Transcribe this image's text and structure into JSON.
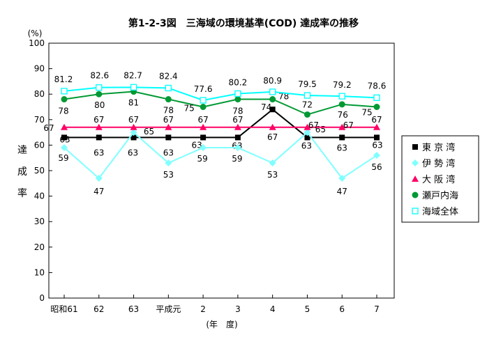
{
  "chart_data": {
    "type": "line",
    "title": "第1-2-3図　三海域の環境基準(COD) 達成率の推移",
    "y_unit": "(%)",
    "ylabel_chars": [
      "達",
      "成",
      "率"
    ],
    "xlabel": "(年　度)",
    "categories": [
      "昭和61",
      "62",
      "63",
      "平成元",
      "2",
      "3",
      "4",
      "5",
      "6",
      "7"
    ],
    "ylim": [
      0,
      100
    ],
    "yticks": [
      0,
      10,
      20,
      30,
      40,
      50,
      60,
      70,
      80,
      90,
      100
    ],
    "grid": false,
    "legend_position": "right",
    "series": [
      {
        "name": "東 京 湾",
        "marker": "square",
        "color": "#000000",
        "values": [
          63,
          63,
          63,
          63,
          63,
          63,
          74,
          63,
          63,
          63
        ],
        "labels": [
          "63",
          "63",
          "63",
          "63",
          "63",
          "63",
          "74",
          "63",
          "63",
          "63"
        ]
      },
      {
        "name": "伊 勢 湾",
        "marker": "diamond",
        "color": "#80ffff",
        "values": [
          59,
          47,
          65,
          53,
          59,
          59,
          53,
          65,
          47,
          56
        ],
        "labels": [
          "59",
          "47",
          "65",
          "53",
          "59",
          "59",
          "53",
          "65",
          "47",
          "56"
        ]
      },
      {
        "name": "大 阪 湾",
        "marker": "triangle",
        "color": "#ff0066",
        "values": [
          67,
          67,
          67,
          67,
          67,
          67,
          67,
          67,
          67,
          67
        ],
        "labels": [
          "67",
          "67",
          "67",
          "67",
          "67",
          "67",
          "67",
          "67",
          "67",
          "67"
        ]
      },
      {
        "name": "瀬戸内海",
        "marker": "circle",
        "color": "#009933",
        "values": [
          78,
          80,
          81,
          78,
          75,
          78,
          78,
          72,
          76,
          75
        ],
        "labels": [
          "78",
          "80",
          "81",
          "78",
          "75",
          "78",
          "78",
          "72",
          "76",
          "75"
        ]
      },
      {
        "name": "海域全体",
        "marker": "open-square",
        "color": "#00ffff",
        "values": [
          81.2,
          82.6,
          82.7,
          82.4,
          77.6,
          80.2,
          80.9,
          79.5,
          79.2,
          78.6
        ],
        "labels": [
          "81.2",
          "82.6",
          "82.7",
          "82.4",
          "77.6",
          "80.2",
          "80.9",
          "79.5",
          "79.2",
          "78.6"
        ]
      }
    ]
  }
}
